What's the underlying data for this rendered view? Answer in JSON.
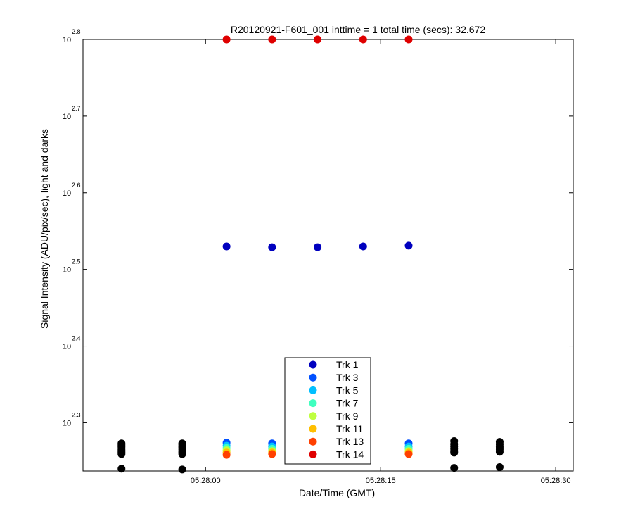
{
  "chart_data": {
    "type": "scatter",
    "title": "R20120921-F601_001 inttime = 1 total time (secs): 32.672",
    "xlabel": "Date/Time (GMT)",
    "ylabel": "Signal Intensity (ADU/pix/sec), light and darks",
    "y_scale": "log10",
    "x_unit": "seconds after 05:28:00",
    "xlim": [
      -10.5,
      31.5
    ],
    "ylim_exponent": [
      2.237,
      2.8
    ],
    "x_ticks": [
      {
        "value": 0,
        "label": "05:28:00"
      },
      {
        "value": 15,
        "label": "05:28:15"
      },
      {
        "value": 30,
        "label": "05:28:30"
      }
    ],
    "y_ticks": [
      {
        "exp": 2.3,
        "base": "10",
        "label": "2.3"
      },
      {
        "exp": 2.4,
        "base": "10",
        "label": "2.4"
      },
      {
        "exp": 2.5,
        "base": "10",
        "label": "2.5"
      },
      {
        "exp": 2.6,
        "base": "10",
        "label": "2.6"
      },
      {
        "exp": 2.7,
        "base": "10",
        "label": "2.7"
      },
      {
        "exp": 2.8,
        "base": "10",
        "label": "2.8"
      }
    ],
    "legend_position": "bottom-center",
    "series": [
      {
        "name": "Trk 1",
        "color": "#0000bf",
        "x": [
          1.8,
          5.7,
          9.6,
          13.5,
          17.4
        ],
        "y_exp": [
          2.53,
          2.529,
          2.529,
          2.53,
          2.531
        ]
      },
      {
        "name": "Trk 3",
        "color": "#0050ff",
        "x": [
          1.8,
          5.7,
          17.4
        ],
        "y_exp": [
          2.274,
          2.273,
          2.273
        ]
      },
      {
        "name": "Trk 5",
        "color": "#00bfff",
        "x": [
          1.8,
          5.7,
          17.4
        ],
        "y_exp": [
          2.27,
          2.269,
          2.269
        ]
      },
      {
        "name": "Trk 7",
        "color": "#40ffbf",
        "x": [
          1.8,
          5.7,
          17.4
        ],
        "y_exp": [
          2.267,
          2.266,
          2.266
        ]
      },
      {
        "name": "Trk 9",
        "color": "#bfff40",
        "x": [
          1.8,
          5.7,
          17.4
        ],
        "y_exp": [
          2.264,
          2.263,
          2.263
        ]
      },
      {
        "name": "Trk 11",
        "color": "#ffbf00",
        "x": [
          1.8,
          5.7,
          17.4
        ],
        "y_exp": [
          2.261,
          2.261,
          2.261
        ]
      },
      {
        "name": "Trk 13",
        "color": "#ff4000",
        "x": [
          1.8,
          5.7,
          17.4
        ],
        "y_exp": [
          2.258,
          2.259,
          2.259
        ]
      },
      {
        "name": "Trk 14",
        "color": "#df0000",
        "x": [
          1.8,
          5.7,
          9.6,
          13.5,
          17.4
        ],
        "y_exp": [
          2.8,
          2.8,
          2.8,
          2.8,
          2.8
        ]
      }
    ],
    "darks": {
      "color": "#000000",
      "x": [
        -7.2,
        -7.2,
        -7.2,
        -7.2,
        -7.2,
        -7.2,
        -7.2,
        -7.2,
        -7.2,
        -2.0,
        -2.0,
        -2.0,
        -2.0,
        -2.0,
        -2.0,
        -2.0,
        -2.0,
        -2.0,
        21.3,
        21.3,
        21.3,
        21.3,
        21.3,
        21.3,
        21.3,
        25.2,
        25.2,
        25.2,
        25.2,
        25.2,
        25.2,
        25.2
      ],
      "y_exp": [
        2.273,
        2.271,
        2.269,
        2.267,
        2.265,
        2.263,
        2.261,
        2.259,
        2.24,
        2.273,
        2.271,
        2.269,
        2.267,
        2.265,
        2.263,
        2.261,
        2.259,
        2.239,
        2.276,
        2.272,
        2.269,
        2.266,
        2.263,
        2.261,
        2.241,
        2.275,
        2.272,
        2.269,
        2.267,
        2.265,
        2.262,
        2.242
      ]
    }
  }
}
